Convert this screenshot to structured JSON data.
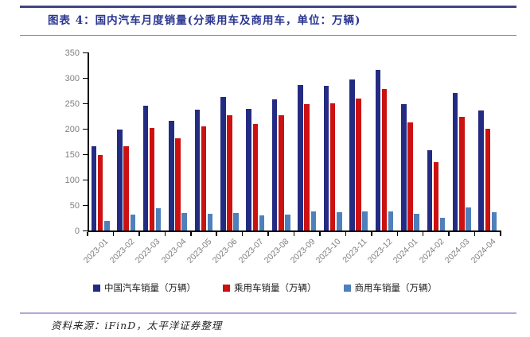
{
  "header": {
    "title": "图表 4：国内汽车月度销量(分乘用车及商用车，单位：万辆)"
  },
  "chart_data": {
    "type": "bar",
    "title": "图表 4：国内汽车月度销量(分乘用车及商用车，单位：万辆)",
    "categories": [
      "2023-01",
      "2023-02",
      "2023-03",
      "2023-04",
      "2023-05",
      "2023-06",
      "2023-07",
      "2023-08",
      "2023-09",
      "2023-10",
      "2023-11",
      "2023-12",
      "2024-01",
      "2024-02",
      "2024-03",
      "2024-04"
    ],
    "series": [
      {
        "name": "中国汽车销量（万辆）",
        "color": "#242b82",
        "values": [
          165,
          198,
          245,
          216,
          238,
          262,
          239,
          258,
          286,
          285,
          297,
          316,
          248,
          158,
          270,
          236
        ]
      },
      {
        "name": "乘用车销量（万辆）",
        "color": "#cc1111",
        "values": [
          148,
          165,
          201,
          181,
          204,
          227,
          210,
          227,
          248,
          250,
          260,
          278,
          212,
          134,
          224,
          200
        ]
      },
      {
        "name": "商用车销量（万辆）",
        "color": "#4e80bc",
        "values": [
          18,
          32,
          44,
          35,
          33,
          35,
          29,
          31,
          37,
          36,
          37,
          37,
          33,
          25,
          46,
          36
        ]
      }
    ],
    "xlabel": "",
    "ylabel": "",
    "ylim": [
      0,
      350
    ],
    "yticks": [
      0,
      50,
      100,
      150,
      200,
      250,
      300,
      350
    ],
    "grid": false,
    "legend_position": "bottom"
  },
  "footer": {
    "source": "资料来源：iFinD，太平洋证券整理"
  }
}
